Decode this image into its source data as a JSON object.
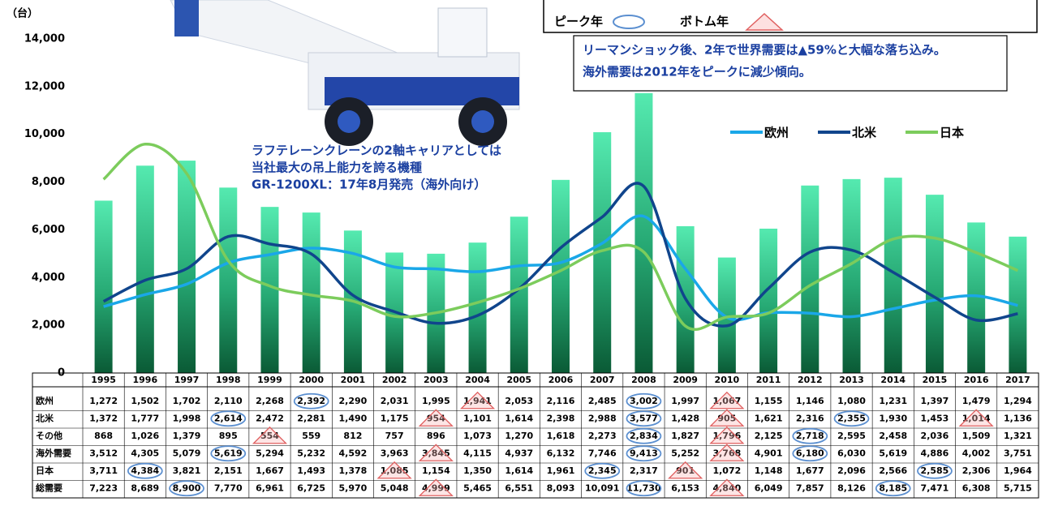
{
  "chart_data": {
    "type": "bar",
    "unit_label": "（台）",
    "categories": [
      "1995",
      "1996",
      "1997",
      "1998",
      "1999",
      "2000",
      "2001",
      "2002",
      "2003",
      "2004",
      "2005",
      "2006",
      "2007",
      "2008",
      "2009",
      "2010",
      "2011",
      "2012",
      "2013",
      "2014",
      "2015",
      "2016",
      "2017"
    ],
    "ylim": [
      0,
      14000
    ],
    "yticks": [
      {
        "value": 0,
        "label": "0"
      },
      {
        "value": 2000,
        "label": "2,000"
      },
      {
        "value": 4000,
        "label": "4,000"
      },
      {
        "value": 6000,
        "label": "6,000"
      },
      {
        "value": 8000,
        "label": "8,000"
      },
      {
        "value": 10000,
        "label": "10,000"
      },
      {
        "value": 12000,
        "label": "12,000"
      },
      {
        "value": 14000,
        "label": "14,000"
      }
    ],
    "y2lim": [
      0,
      6400
    ],
    "series": [
      {
        "name": "欧州",
        "type": "line",
        "axis": "y2",
        "color": "#1aa7e8",
        "values": [
          1272,
          1502,
          1702,
          2110,
          2268,
          2392,
          2290,
          2031,
          1995,
          1941,
          2053,
          2116,
          2485,
          3002,
          1997,
          1067,
          1155,
          1146,
          1080,
          1231,
          1397,
          1479,
          1294
        ],
        "value_labels": [
          "1,272",
          "1,502",
          "1,702",
          "2,110",
          "2,268",
          "2,392",
          "2,290",
          "2,031",
          "1,995",
          "1,941",
          "2,053",
          "2,116",
          "2,485",
          "3,002",
          "1,997",
          "1,067",
          "1,155",
          "1,146",
          "1,080",
          "1,231",
          "1,397",
          "1,479",
          "1,294"
        ],
        "peaks": [
          5,
          13
        ],
        "bottoms": [
          9,
          15
        ]
      },
      {
        "name": "北米",
        "type": "line",
        "axis": "y2",
        "color": "#10458c",
        "values": [
          1372,
          1777,
          1998,
          2614,
          2472,
          2281,
          1490,
          1175,
          954,
          1101,
          1614,
          2398,
          2988,
          3577,
          1428,
          905,
          1621,
          2316,
          2355,
          1930,
          1453,
          1014,
          1136
        ],
        "value_labels": [
          "1,372",
          "1,777",
          "1,998",
          "2,614",
          "2,472",
          "2,281",
          "1,490",
          "1,175",
          "954",
          "1,101",
          "1,614",
          "2,398",
          "2,988",
          "3,577",
          "1,428",
          "905",
          "1,621",
          "2,316",
          "2,355",
          "1,930",
          "1,453",
          "1,014",
          "1,136"
        ],
        "peaks": [
          3,
          13,
          18
        ],
        "bottoms": [
          8,
          15,
          21
        ]
      },
      {
        "name": "その他",
        "values": [
          868,
          1026,
          1379,
          895,
          554,
          559,
          812,
          757,
          896,
          1073,
          1270,
          1618,
          2273,
          2834,
          1827,
          1796,
          2125,
          2718,
          2595,
          2458,
          2036,
          1509,
          1321
        ],
        "value_labels": [
          "868",
          "1,026",
          "1,379",
          "895",
          "554",
          "559",
          "812",
          "757",
          "896",
          "1,073",
          "1,270",
          "1,618",
          "2,273",
          "2,834",
          "1,827",
          "1,796",
          "2,125",
          "2,718",
          "2,595",
          "2,458",
          "2,036",
          "1,509",
          "1,321"
        ],
        "peaks": [
          13,
          17
        ],
        "bottoms": [
          4,
          15
        ]
      },
      {
        "name": "海外需要",
        "values": [
          3512,
          4305,
          5079,
          5619,
          5294,
          5232,
          4592,
          3963,
          3845,
          4115,
          4937,
          6132,
          7746,
          9413,
          5252,
          3768,
          4901,
          6180,
          6030,
          5619,
          4886,
          4002,
          3751
        ],
        "value_labels": [
          "3,512",
          "4,305",
          "5,079",
          "5,619",
          "5,294",
          "5,232",
          "4,592",
          "3,963",
          "3,845",
          "4,115",
          "4,937",
          "6,132",
          "7,746",
          "9,413",
          "5,252",
          "3,768",
          "4,901",
          "6,180",
          "6,030",
          "5,619",
          "4,886",
          "4,002",
          "3,751"
        ],
        "peaks": [
          3,
          13,
          17
        ],
        "bottoms": [
          8,
          15
        ]
      },
      {
        "name": "日本",
        "type": "line",
        "axis": "y2",
        "color": "#7ccc5c",
        "values": [
          3711,
          4384,
          3821,
          2151,
          1667,
          1493,
          1378,
          1085,
          1154,
          1350,
          1614,
          1961,
          2345,
          2317,
          901,
          1072,
          1148,
          1677,
          2096,
          2566,
          2585,
          2306,
          1964
        ],
        "value_labels": [
          "3,711",
          "4,384",
          "3,821",
          "2,151",
          "1,667",
          "1,493",
          "1,378",
          "1,085",
          "1,154",
          "1,350",
          "1,614",
          "1,961",
          "2,345",
          "2,317",
          "901",
          "1,072",
          "1,148",
          "1,677",
          "2,096",
          "2,566",
          "2,585",
          "2,306",
          "1,964"
        ],
        "peaks": [
          1,
          12,
          20
        ],
        "bottoms": [
          7,
          14
        ]
      },
      {
        "name": "総需要",
        "type": "bar",
        "color": "#2fcf8c",
        "values": [
          7223,
          8689,
          8900,
          7770,
          6961,
          6725,
          5970,
          5048,
          4999,
          5465,
          6551,
          8093,
          10091,
          11730,
          6153,
          4840,
          6049,
          7857,
          8126,
          8185,
          7471,
          6308,
          5715
        ],
        "value_labels": [
          "7,223",
          "8,689",
          "8,900",
          "7,770",
          "6,961",
          "6,725",
          "5,970",
          "5,048",
          "4,999",
          "5,465",
          "6,551",
          "8,093",
          "10,091",
          "11,730",
          "6,153",
          "4,840",
          "6,049",
          "7,857",
          "8,126",
          "8,185",
          "7,471",
          "6,308",
          "5,715"
        ],
        "peaks": [
          2,
          13,
          19
        ],
        "bottoms": [
          8,
          15
        ]
      }
    ],
    "marker_legend": {
      "peak": "ピーク年",
      "bottom": "ボトム年"
    },
    "annotations": [
      {
        "text": "リーマンショック後、2年で世界需要は▲59%と大幅な落ち込み。"
      },
      {
        "text": "海外需要は2012年をピークに減少傾向。"
      },
      {
        "text": "ラフテレーンクレーンの2軸キャリアとしては"
      },
      {
        "text": "当社最大の吊上能力を誇る機種"
      },
      {
        "text": "GR-1200XL：17年8月発売（海外向け）"
      }
    ]
  }
}
